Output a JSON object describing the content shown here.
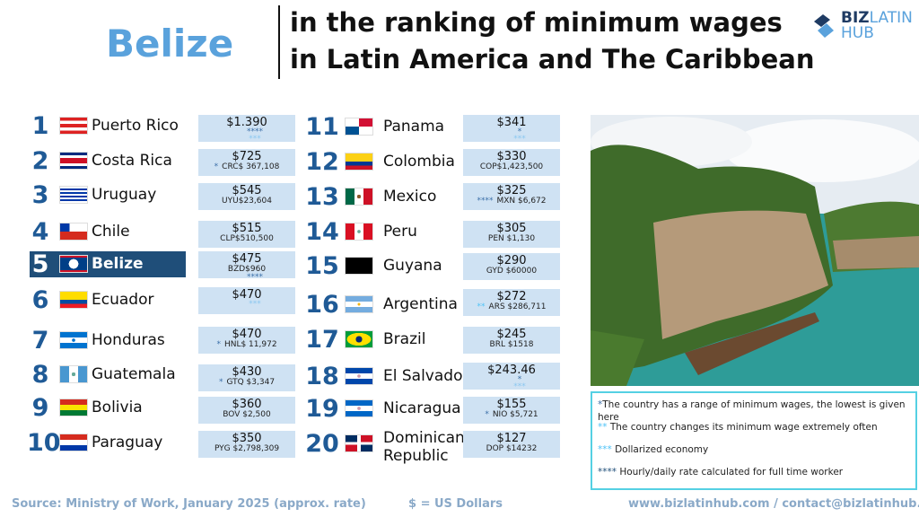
{
  "header": {
    "country": "Belize",
    "title_line1": "in the ranking of minimum wages",
    "title_line2": "in Latin America and The Caribbean",
    "logo": "BIZLATIN HUB"
  },
  "mark_colors": {
    "1": "#3b6fa8",
    "2": "#4fc3f7",
    "3": "#8cc8f0",
    "4": "#3b6fa8"
  },
  "highlight_color": "#1f4e79",
  "rankings": [
    {
      "rank": "1",
      "country": "Puerto Rico",
      "flag": "pr",
      "usd": "$1.390",
      "pre": "",
      "local": "",
      "marks": [
        "****",
        "***"
      ]
    },
    {
      "rank": "2",
      "country": "Costa Rica",
      "flag": "cr",
      "usd": "$725",
      "pre": "*",
      "local": "CRC$ 367,108",
      "marks": []
    },
    {
      "rank": "3",
      "country": "Uruguay",
      "flag": "uy",
      "usd": "$545",
      "pre": "",
      "local": "UYU$23,604",
      "marks": []
    },
    {
      "rank": "4",
      "country": "Chile",
      "flag": "cl",
      "usd": "$515",
      "pre": "",
      "local": "CLP$510,500",
      "marks": []
    },
    {
      "rank": "5",
      "country": "Belize",
      "flag": "bz",
      "usd": "$475",
      "pre": "",
      "local": "BZD$960",
      "marks": [
        "****"
      ],
      "highlight": true
    },
    {
      "rank": "6",
      "country": "Ecuador",
      "flag": "ec",
      "usd": "$470",
      "pre": "",
      "local": "",
      "marks": [
        "***"
      ]
    },
    {
      "rank": "7",
      "country": "Honduras",
      "flag": "hn",
      "usd": "$470",
      "pre": "*",
      "local": "HNL$ 11,972",
      "marks": []
    },
    {
      "rank": "8",
      "country": "Guatemala",
      "flag": "gt",
      "usd": "$430",
      "pre": "*",
      "local": "GTQ $3,347",
      "marks": []
    },
    {
      "rank": "9",
      "country": "Bolivia",
      "flag": "bo",
      "usd": "$360",
      "pre": "",
      "local": "BOV $2,500",
      "marks": []
    },
    {
      "rank": "10",
      "country": "Paraguay",
      "flag": "py",
      "usd": "$350",
      "pre": "",
      "local": "PYG $2,798,309",
      "marks": []
    },
    {
      "rank": "11",
      "country": "Panama",
      "flag": "pa",
      "usd": "$341",
      "pre": "",
      "local": "",
      "marks": [
        "*",
        "***"
      ]
    },
    {
      "rank": "12",
      "country": "Colombia",
      "flag": "co",
      "usd": "$330",
      "pre": "",
      "local": "COP$1,423,500",
      "marks": []
    },
    {
      "rank": "13",
      "country": "Mexico",
      "flag": "mx",
      "usd": "$325",
      "pre": "****",
      "local": "MXN $6,672",
      "marks": []
    },
    {
      "rank": "14",
      "country": "Peru",
      "flag": "pe",
      "usd": "$305",
      "pre": "",
      "local": "PEN $1,130",
      "marks": []
    },
    {
      "rank": "15",
      "country": "Guyana",
      "flag": "gy",
      "usd": "$290",
      "pre": "",
      "local": "GYD $60000",
      "marks": []
    },
    {
      "rank": "16",
      "country": "Argentina",
      "flag": "ar",
      "usd": "$272",
      "pre": "**",
      "local": "ARS $286,711",
      "marks": []
    },
    {
      "rank": "17",
      "country": "Brazil",
      "flag": "br",
      "usd": "$245",
      "pre": "",
      "local": "BRL $1518",
      "marks": []
    },
    {
      "rank": "18",
      "country": "El Salvador",
      "flag": "sv",
      "usd": "$243.46",
      "pre": "",
      "local": "",
      "marks": [
        "*",
        "***"
      ]
    },
    {
      "rank": "19",
      "country": "Nicaragua",
      "flag": "ni",
      "usd": "$155",
      "pre": "*",
      "local": "NIO  $5,721",
      "marks": []
    },
    {
      "rank": "20",
      "country": "Dominican Republic",
      "flag": "do",
      "usd": "$127",
      "pre": "",
      "local": "DOP $14232",
      "marks": []
    }
  ],
  "notes": [
    {
      "mark": "*",
      "text": "The country has a range of minimum wages, the lowest is given here"
    },
    {
      "mark": "**",
      "text": " The country changes its minimum wage extremely often"
    },
    {
      "mark": "***",
      "text": " Dollarized economy"
    },
    {
      "mark": "****",
      "text": " Hourly/daily rate calculated for full time worker"
    }
  ],
  "footer": {
    "source": "Source: Ministry of Work, January 2025 (approx. rate)",
    "currency": "$ = US Dollars",
    "contact": "www.bizlatinhub.com / contact@bizlatinhub.com"
  }
}
